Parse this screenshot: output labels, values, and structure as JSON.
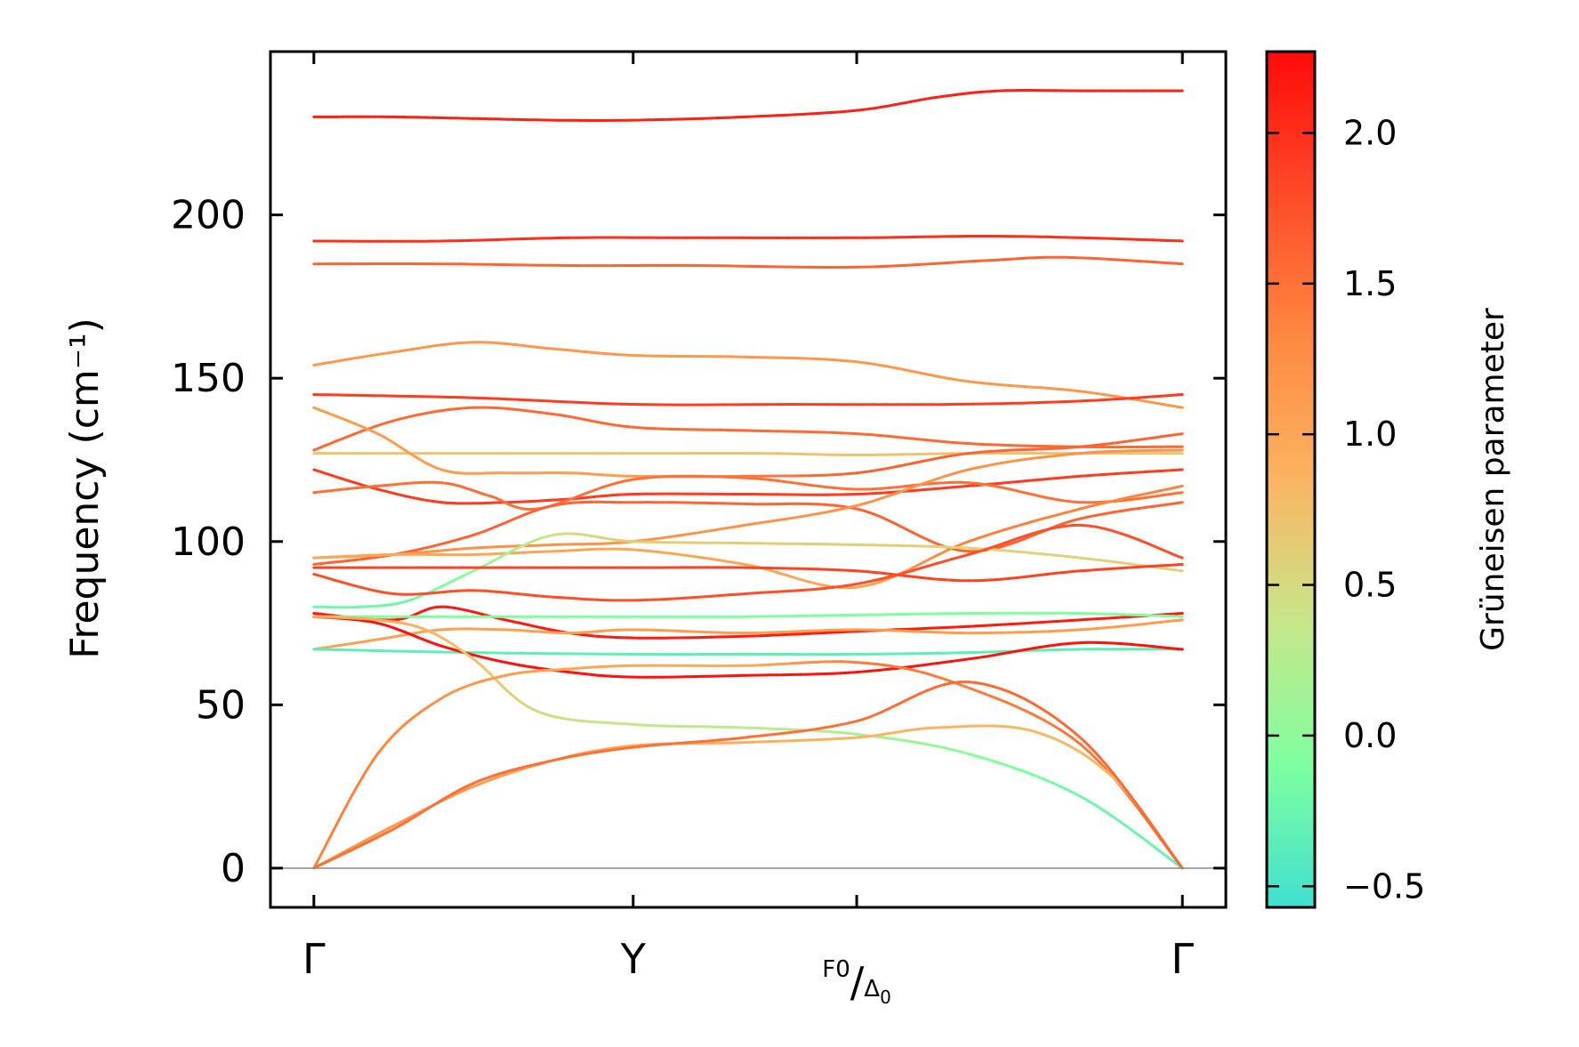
{
  "chart_data": {
    "type": "line",
    "title": "",
    "xlabel": "",
    "ylabel": "Frequency (cm⁻¹)",
    "ylim": [
      -12,
      250
    ],
    "yticks": [
      0,
      50,
      100,
      150,
      200
    ],
    "x_positions": [
      0,
      1.0,
      1.7,
      2.72
    ],
    "x_tick_labels": [
      {
        "main": "Γ"
      },
      {
        "main": "Y"
      },
      {
        "main": "F",
        "sub": "0",
        "sep": "/",
        "main2": "Δ",
        "sub2": "0"
      },
      {
        "main": "Γ"
      }
    ],
    "colorbar": {
      "label": "Grüneisen parameter",
      "range": [
        -0.57,
        2.27
      ],
      "ticks": [
        "−0.5",
        "0.0",
        "0.5",
        "1.0",
        "1.5",
        "2.0"
      ],
      "tick_values": [
        -0.5,
        0.0,
        0.5,
        1.0,
        1.5,
        2.0
      ],
      "colormap": [
        "#40e0d0",
        "#7fffa0",
        "#c8e68a",
        "#fbb462",
        "#ff8840",
        "#ff4a28",
        "#ff0a0a"
      ]
    },
    "series": [
      {
        "name": "band-1",
        "x": [
          0,
          0.25,
          0.5,
          0.75,
          1.0,
          1.35,
          1.7,
          1.95,
          2.15,
          2.4,
          2.72
        ],
        "y": [
          230,
          230,
          229.5,
          229,
          229,
          230,
          232,
          236,
          238,
          238,
          238
        ],
        "g": [
          2.1,
          2.1,
          2.1,
          2.1,
          2.1,
          2.1,
          2.1,
          2.1,
          2.1,
          2.1,
          2.1
        ]
      },
      {
        "name": "band-2",
        "x": [
          0,
          0.4,
          0.8,
          1.2,
          1.7,
          2.1,
          2.4,
          2.72
        ],
        "y": [
          192,
          192,
          193,
          193,
          193,
          193.5,
          193,
          192
        ],
        "g": [
          2.0,
          2.0,
          2.0,
          2.0,
          2.0,
          2.0,
          2.0,
          2.0
        ]
      },
      {
        "name": "band-3",
        "x": [
          0,
          0.4,
          0.8,
          1.2,
          1.7,
          2.1,
          2.35,
          2.72
        ],
        "y": [
          185,
          185,
          184.5,
          184.5,
          184,
          186,
          187,
          185
        ],
        "g": [
          1.6,
          1.6,
          1.6,
          1.6,
          1.6,
          1.6,
          1.6,
          1.6
        ]
      },
      {
        "name": "band-4",
        "x": [
          0,
          0.25,
          0.5,
          0.75,
          1.0,
          1.35,
          1.7,
          2.05,
          2.4,
          2.72
        ],
        "y": [
          154,
          158,
          161,
          159,
          157,
          156.5,
          155,
          149,
          146,
          141
        ],
        "g": [
          1.15,
          1.15,
          1.15,
          1.15,
          1.15,
          1.15,
          1.15,
          1.15,
          1.15,
          1.15
        ]
      },
      {
        "name": "band-5",
        "x": [
          0,
          0.5,
          1.0,
          1.5,
          2.0,
          2.4,
          2.72
        ],
        "y": [
          145,
          144,
          142,
          142,
          142,
          143,
          145
        ],
        "g": [
          1.9,
          1.9,
          1.9,
          1.9,
          1.9,
          1.9,
          1.9
        ]
      },
      {
        "name": "band-6",
        "x": [
          0,
          0.25,
          0.5,
          0.75,
          1.0,
          1.35,
          1.7,
          2.05,
          2.4,
          2.72
        ],
        "y": [
          128,
          137,
          141,
          139,
          135,
          134,
          133,
          130,
          129,
          129
        ],
        "g": [
          1.55,
          1.55,
          1.55,
          1.55,
          1.55,
          1.55,
          1.55,
          1.55,
          1.55,
          1.55
        ]
      },
      {
        "name": "band-7",
        "x": [
          0,
          0.5,
          1.0,
          1.4,
          1.7,
          2.05,
          2.4,
          2.72
        ],
        "y": [
          127,
          127,
          127,
          127,
          126.5,
          127,
          127,
          127
        ],
        "g": [
          0.7,
          0.7,
          0.7,
          0.7,
          0.7,
          0.7,
          0.7,
          0.7
        ]
      },
      {
        "name": "band-8",
        "x": [
          0,
          0.2,
          0.4,
          0.6,
          0.8,
          1.0,
          1.35,
          1.7,
          2.05,
          2.4,
          2.72
        ],
        "y": [
          141,
          133,
          122,
          121,
          121,
          120,
          120,
          121,
          127,
          129,
          133
        ],
        "g": [
          1.1,
          1.1,
          1.1,
          1.1,
          1.1,
          1.1,
          1.4,
          1.6,
          1.6,
          1.6,
          1.6
        ]
      },
      {
        "name": "band-9",
        "x": [
          0,
          0.2,
          0.4,
          0.6,
          0.8,
          1.0,
          1.35,
          1.7,
          2.05,
          2.4,
          2.72
        ],
        "y": [
          122,
          116,
          112,
          112,
          113,
          114.5,
          114.5,
          114.5,
          117,
          120,
          122
        ],
        "g": [
          1.9,
          1.9,
          1.9,
          1.9,
          1.9,
          1.9,
          1.9,
          1.9,
          1.9,
          1.9,
          1.9
        ]
      },
      {
        "name": "band-10",
        "x": [
          0,
          0.2,
          0.4,
          0.55,
          0.7,
          1.0,
          1.35,
          1.7,
          2.05,
          2.4,
          2.72
        ],
        "y": [
          115,
          117,
          118,
          114,
          110,
          119,
          119.5,
          116,
          118,
          112,
          115
        ],
        "g": [
          1.5,
          1.5,
          1.5,
          1.5,
          1.5,
          1.5,
          1.5,
          1.5,
          1.5,
          1.5,
          1.5
        ]
      },
      {
        "name": "band-11",
        "x": [
          0,
          0.25,
          0.5,
          0.75,
          1.0,
          1.35,
          1.7,
          2.05,
          2.4,
          2.72
        ],
        "y": [
          93,
          96,
          102,
          111,
          112,
          111.5,
          110,
          97,
          107,
          112
        ],
        "g": [
          1.6,
          1.6,
          1.6,
          1.6,
          1.6,
          1.6,
          1.6,
          1.6,
          1.6,
          1.6
        ]
      },
      {
        "name": "band-12",
        "x": [
          0,
          0.25,
          0.5,
          0.75,
          1.0,
          1.35,
          1.7,
          2.05,
          2.4,
          2.72
        ],
        "y": [
          95,
          96,
          98,
          99,
          100,
          105,
          111,
          122,
          127,
          128
        ],
        "g": [
          1.2,
          1.2,
          1.2,
          1.2,
          1.2,
          1.2,
          1.2,
          1.2,
          1.2,
          1.2
        ]
      },
      {
        "name": "band-13",
        "x": [
          0,
          0.25,
          0.5,
          0.75,
          1.0,
          1.35,
          1.7,
          2.05,
          2.4,
          2.72
        ],
        "y": [
          95,
          96,
          96,
          97,
          97.5,
          93,
          86,
          100,
          110,
          117
        ],
        "g": [
          1.0,
          1.0,
          1.0,
          1.0,
          1.0,
          1.0,
          1.0,
          1.35,
          1.35,
          1.35
        ]
      },
      {
        "name": "band-14",
        "x": [
          0,
          0.15,
          0.3,
          0.5,
          0.75,
          1.0,
          1.35,
          1.7,
          2.05,
          2.4,
          2.72
        ],
        "y": [
          80,
          80,
          82,
          91,
          102,
          100,
          99.5,
          99,
          98,
          95,
          91
        ],
        "g": [
          -0.2,
          -0.2,
          -0.2,
          0.0,
          0.4,
          0.6,
          0.6,
          0.6,
          0.55,
          0.55,
          0.55
        ]
      },
      {
        "name": "band-15",
        "x": [
          0,
          0.5,
          1.0,
          1.35,
          1.7,
          2.05,
          2.4,
          2.72
        ],
        "y": [
          92,
          92,
          92,
          92,
          91,
          88,
          91,
          93
        ],
        "g": [
          1.85,
          1.85,
          1.85,
          1.85,
          1.85,
          1.85,
          1.85,
          1.85
        ]
      },
      {
        "name": "band-16",
        "x": [
          0,
          0.25,
          0.5,
          0.75,
          1.0,
          1.35,
          1.7,
          2.05,
          2.4,
          2.72
        ],
        "y": [
          90,
          84,
          85,
          83,
          82,
          84,
          87,
          96,
          105,
          95
        ],
        "g": [
          1.75,
          1.75,
          1.75,
          1.75,
          1.75,
          1.75,
          1.75,
          1.75,
          1.75,
          1.75
        ]
      },
      {
        "name": "band-17",
        "x": [
          0,
          0.25,
          0.4,
          0.6,
          0.8,
          1.0,
          1.35,
          1.7,
          2.05,
          2.4,
          2.72
        ],
        "y": [
          78,
          76,
          80,
          76,
          72,
          70.5,
          71,
          72.5,
          74,
          76,
          78
        ],
        "g": [
          2.15,
          2.15,
          2.15,
          2.15,
          2.15,
          2.15,
          2.15,
          2.15,
          2.15,
          2.15,
          2.15
        ]
      },
      {
        "name": "band-18",
        "x": [
          0,
          0.5,
          1.0,
          1.35,
          1.7,
          2.05,
          2.4,
          2.72
        ],
        "y": [
          77,
          77,
          77,
          77,
          77.5,
          78,
          78,
          77
        ],
        "g": [
          -0.1,
          -0.1,
          -0.1,
          -0.1,
          -0.1,
          -0.1,
          -0.1,
          -0.1
        ]
      },
      {
        "name": "band-19",
        "x": [
          0,
          0.2,
          0.4,
          0.6,
          0.8,
          1.0,
          1.35,
          1.7,
          2.05,
          2.4,
          2.72
        ],
        "y": [
          67,
          70,
          73,
          73,
          72,
          73,
          72,
          73,
          72,
          73,
          76
        ],
        "g": [
          1.05,
          1.05,
          1.05,
          1.05,
          1.05,
          1.1,
          1.1,
          1.1,
          1.1,
          1.1,
          1.1
        ]
      },
      {
        "name": "band-20",
        "x": [
          0,
          0.5,
          1.0,
          1.35,
          1.7,
          2.05,
          2.4,
          2.72
        ],
        "y": [
          67,
          66,
          65.5,
          65.5,
          65.5,
          66,
          67,
          67
        ],
        "g": [
          -0.35,
          -0.35,
          -0.35,
          -0.35,
          -0.35,
          -0.35,
          -0.35,
          -0.35
        ]
      },
      {
        "name": "band-21",
        "x": [
          0,
          0.2,
          0.4,
          0.6,
          0.8,
          1.0,
          1.35,
          1.7,
          2.05,
          2.4,
          2.72
        ],
        "y": [
          77,
          75,
          68,
          63,
          60,
          58.5,
          59,
          60,
          64,
          69,
          67
        ],
        "g": [
          2.2,
          2.2,
          2.2,
          2.2,
          2.2,
          2.2,
          2.2,
          2.2,
          2.2,
          2.2,
          2.2
        ]
      },
      {
        "name": "band-22",
        "x": [
          0,
          0.2,
          0.35,
          0.5,
          0.7,
          1.0,
          1.35,
          1.7,
          2.05,
          2.4,
          2.72
        ],
        "y": [
          77,
          76,
          73,
          64,
          48,
          44,
          43,
          41,
          35,
          22,
          0
        ],
        "g": [
          0.95,
          0.95,
          0.85,
          0.7,
          0.5,
          0.35,
          0.3,
          0.15,
          0.0,
          -0.2,
          -0.3
        ]
      },
      {
        "name": "band-23",
        "x": [
          0,
          0.2,
          0.4,
          0.6,
          0.8,
          1.0,
          1.35,
          1.7,
          2.0,
          2.4,
          2.72
        ],
        "y": [
          0,
          35,
          52,
          59,
          61,
          62,
          62,
          63,
          57,
          38,
          0
        ],
        "g": [
          1.35,
          1.35,
          1.2,
          1.1,
          1.0,
          1.0,
          0.95,
          1.4,
          1.4,
          1.45,
          1.5
        ]
      },
      {
        "name": "band-24",
        "x": [
          0,
          0.25,
          0.5,
          0.75,
          1.0,
          1.35,
          1.7,
          1.95,
          2.25,
          2.5,
          2.72
        ],
        "y": [
          0,
          13,
          25,
          33,
          37.5,
          38.5,
          40,
          43,
          42,
          28,
          0
        ],
        "g": [
          1.2,
          1.15,
          1.1,
          1.0,
          0.95,
          0.9,
          0.85,
          0.85,
          0.8,
          0.8,
          0.8
        ]
      },
      {
        "name": "band-25",
        "x": [
          0,
          0.25,
          0.5,
          0.75,
          1.0,
          1.35,
          1.7,
          2.05,
          2.4,
          2.72
        ],
        "y": [
          0,
          12,
          26,
          33,
          37,
          40,
          45,
          57,
          40,
          0
        ],
        "g": [
          1.5,
          1.5,
          1.5,
          1.5,
          1.5,
          1.5,
          1.5,
          1.55,
          1.55,
          1.55
        ]
      }
    ]
  }
}
